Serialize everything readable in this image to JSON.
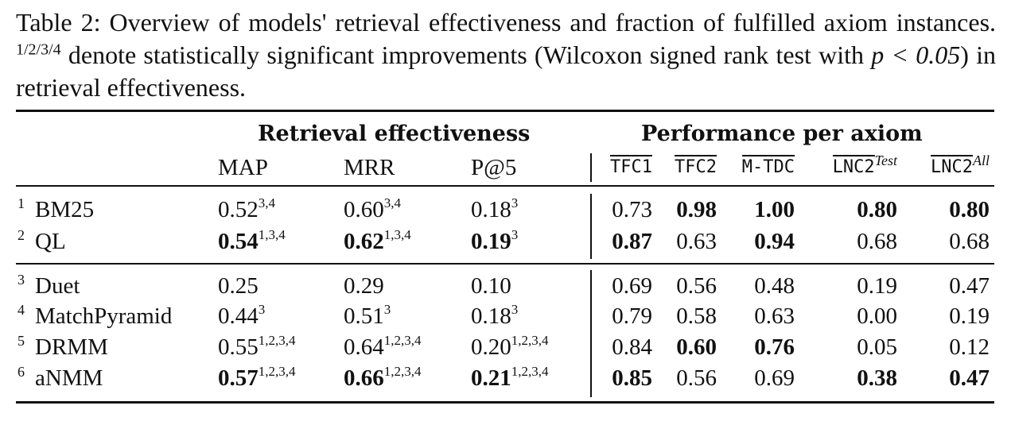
{
  "caption": {
    "label": "Table 2:",
    "text1": "Overview of models' retrieval effectiveness and fraction of fulfilled axiom instances.",
    "sup": "1/2/3/4",
    "text2": "denote statistically significant improvements (Wilcoxon signed rank test with",
    "math": "p < 0.05",
    "text3": ") in retrieval effectiveness."
  },
  "headers": {
    "group_retrieval": "Retrieval effectiveness",
    "group_axiom": "Performance per axiom",
    "metrics": [
      "MAP",
      "MRR",
      "P@5"
    ],
    "axioms": [
      {
        "name": "TFC1",
        "sup": ""
      },
      {
        "name": "TFC2",
        "sup": ""
      },
      {
        "name": "M-TDC",
        "sup": ""
      },
      {
        "name": "LNC2",
        "sup": "Test"
      },
      {
        "name": "LNC2",
        "sup": "All"
      }
    ]
  },
  "rows": [
    {
      "idx": "1",
      "model": "BM25",
      "metrics": [
        {
          "v": "0.52",
          "s": "3,4",
          "b": false
        },
        {
          "v": "0.60",
          "s": "3,4",
          "b": false
        },
        {
          "v": "0.18",
          "s": "3",
          "b": false
        }
      ],
      "axioms": [
        {
          "v": "0.73",
          "b": false
        },
        {
          "v": "0.98",
          "b": true
        },
        {
          "v": "1.00",
          "b": true
        },
        {
          "v": "0.80",
          "b": true
        },
        {
          "v": "0.80",
          "b": true
        }
      ]
    },
    {
      "idx": "2",
      "model": "QL",
      "metrics": [
        {
          "v": "0.54",
          "s": "1,3,4",
          "b": true
        },
        {
          "v": "0.62",
          "s": "1,3,4",
          "b": true
        },
        {
          "v": "0.19",
          "s": "3",
          "b": true
        }
      ],
      "axioms": [
        {
          "v": "0.87",
          "b": true
        },
        {
          "v": "0.63",
          "b": false
        },
        {
          "v": "0.94",
          "b": true
        },
        {
          "v": "0.68",
          "b": false
        },
        {
          "v": "0.68",
          "b": false
        }
      ]
    },
    {
      "idx": "3",
      "model": "Duet",
      "metrics": [
        {
          "v": "0.25",
          "s": "",
          "b": false
        },
        {
          "v": "0.29",
          "s": "",
          "b": false
        },
        {
          "v": "0.10",
          "s": "",
          "b": false
        }
      ],
      "axioms": [
        {
          "v": "0.69",
          "b": false
        },
        {
          "v": "0.56",
          "b": false
        },
        {
          "v": "0.48",
          "b": false
        },
        {
          "v": "0.19",
          "b": false
        },
        {
          "v": "0.47",
          "b": false
        }
      ]
    },
    {
      "idx": "4",
      "model": "MatchPyramid",
      "metrics": [
        {
          "v": "0.44",
          "s": "3",
          "b": false
        },
        {
          "v": "0.51",
          "s": "3",
          "b": false
        },
        {
          "v": "0.18",
          "s": "3",
          "b": false
        }
      ],
      "axioms": [
        {
          "v": "0.79",
          "b": false
        },
        {
          "v": "0.58",
          "b": false
        },
        {
          "v": "0.63",
          "b": false
        },
        {
          "v": "0.00",
          "b": false
        },
        {
          "v": "0.19",
          "b": false
        }
      ]
    },
    {
      "idx": "5",
      "model": "DRMM",
      "metrics": [
        {
          "v": "0.55",
          "s": "1,2,3,4",
          "b": false
        },
        {
          "v": "0.64",
          "s": "1,2,3,4",
          "b": false
        },
        {
          "v": "0.20",
          "s": "1,2,3,4",
          "b": false
        }
      ],
      "axioms": [
        {
          "v": "0.84",
          "b": false
        },
        {
          "v": "0.60",
          "b": true
        },
        {
          "v": "0.76",
          "b": true
        },
        {
          "v": "0.05",
          "b": false
        },
        {
          "v": "0.12",
          "b": false
        }
      ]
    },
    {
      "idx": "6",
      "model": "aNMM",
      "metrics": [
        {
          "v": "0.57",
          "s": "1,2,3,4",
          "b": true
        },
        {
          "v": "0.66",
          "s": "1,2,3,4",
          "b": true
        },
        {
          "v": "0.21",
          "s": "1,2,3,4",
          "b": true
        }
      ],
      "axioms": [
        {
          "v": "0.85",
          "b": true
        },
        {
          "v": "0.56",
          "b": false
        },
        {
          "v": "0.69",
          "b": false
        },
        {
          "v": "0.38",
          "b": true
        },
        {
          "v": "0.47",
          "b": true
        }
      ]
    }
  ]
}
